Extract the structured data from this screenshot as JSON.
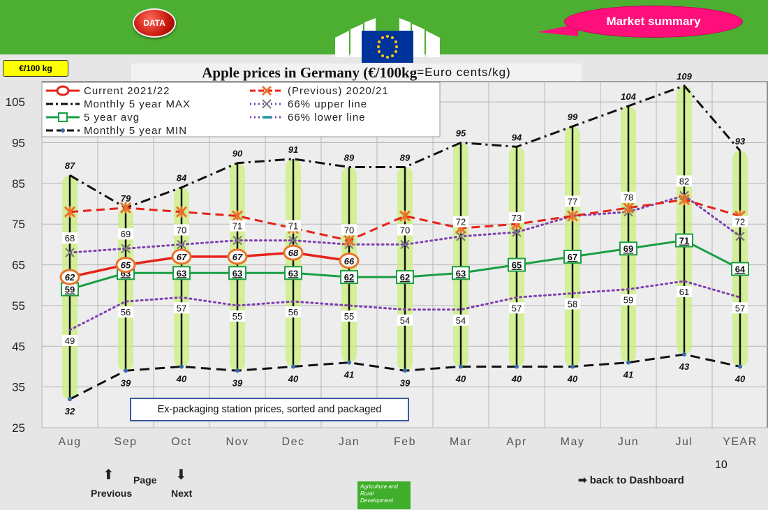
{
  "header": {
    "data_button": "DATA",
    "market_summary": "Market summary"
  },
  "unit_badge": "€/100 kg",
  "title_bold": "Apple prices in Germany (€/100kg",
  "title_light": "=Euro cents/kg)",
  "note": "Ex-packaging station prices, sorted and packaged",
  "page_number": "10",
  "nav": {
    "previous": "Previous",
    "page": "Page",
    "next": "Next",
    "dashboard": "back to Dashboard"
  },
  "agri_text": "Agriculture and Rural Development",
  "colors": {
    "current": "#e52319",
    "previous": "#e52319",
    "max": "#111111",
    "avg": "#1a9e44",
    "upper": "#7e3fb0",
    "lower": "#7e3fb0",
    "min": "#111111",
    "banner": "#4caf32"
  },
  "chart_data": {
    "type": "line",
    "categories": [
      "Aug",
      "Sep",
      "Oct",
      "Nov",
      "Dec",
      "Jan",
      "Feb",
      "Mar",
      "Apr",
      "May",
      "Jun",
      "Jul",
      "YEAR"
    ],
    "ylim": [
      25,
      110
    ],
    "yticks": [
      25,
      35,
      45,
      55,
      65,
      75,
      85,
      95,
      105
    ],
    "grid": true,
    "legend_position": "top-left",
    "series": [
      {
        "name": "Current 2021/22",
        "key": "current",
        "values": [
          62,
          65,
          67,
          67,
          68,
          66,
          null,
          null,
          null,
          null,
          null,
          null,
          null
        ]
      },
      {
        "name": "(Previous) 2020/21",
        "key": "previous",
        "values": [
          78,
          79,
          78,
          77,
          74,
          71,
          77,
          74,
          75,
          77,
          79,
          81,
          77
        ]
      },
      {
        "name": "Monthly 5 year MAX",
        "key": "max",
        "values": [
          87,
          79,
          84,
          90,
          91,
          89,
          89,
          95,
          94,
          99,
          104,
          109,
          93
        ]
      },
      {
        "name": "5 year avg",
        "key": "avg",
        "values": [
          59,
          63,
          63,
          63,
          63,
          62,
          62,
          63,
          65,
          67,
          69,
          71,
          64
        ]
      },
      {
        "name": "66% upper line",
        "key": "upper",
        "values": [
          68,
          69,
          70,
          71,
          71,
          70,
          70,
          72,
          73,
          77,
          78,
          82,
          72
        ]
      },
      {
        "name": "66% lower line",
        "key": "lower",
        "values": [
          49,
          56,
          57,
          55,
          56,
          55,
          54,
          54,
          57,
          58,
          59,
          61,
          57
        ]
      },
      {
        "name": "Monthly 5 year MIN",
        "key": "min",
        "values": [
          32,
          39,
          40,
          39,
          40,
          41,
          39,
          40,
          40,
          40,
          41,
          43,
          40
        ]
      }
    ]
  }
}
